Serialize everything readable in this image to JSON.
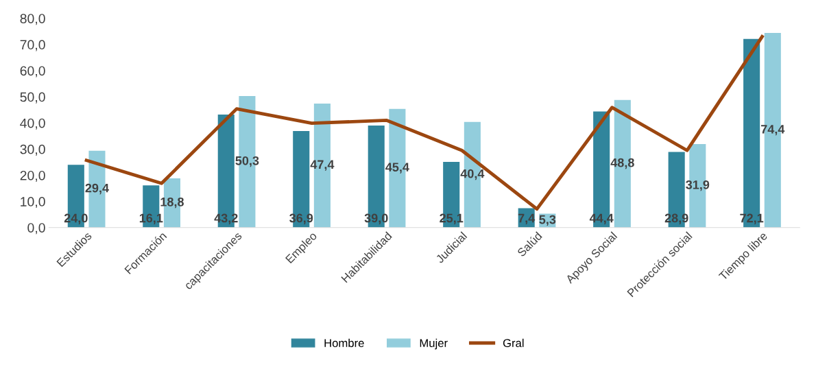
{
  "chart_data": {
    "type": "bar",
    "categories": [
      "Estudios",
      "Formación",
      "capacitaciones",
      "Empleo",
      "Habitabilidad",
      "Judicial",
      "Salúd",
      "Apoyo Social",
      "Protección social",
      "Tiempo libre"
    ],
    "series": [
      {
        "name": "Hombre",
        "color": "#31859c",
        "values": [
          24.0,
          16.1,
          43.2,
          36.9,
          39.0,
          25.1,
          7.4,
          44.4,
          28.9,
          72.1
        ],
        "value_labels": [
          "24,0",
          "16,1",
          "43,2",
          "36,9",
          "39,0",
          "25,1",
          "7,4",
          "44,4",
          "28,9",
          "72,1"
        ]
      },
      {
        "name": "Mujer",
        "color": "#92cddc",
        "values": [
          29.4,
          18.8,
          50.3,
          47.4,
          45.4,
          40.4,
          5.3,
          48.8,
          31.9,
          74.4
        ],
        "value_labels": [
          "29,4",
          "18,8",
          "50,3",
          "47,4",
          "45,4",
          "40,4",
          "5,3",
          "48,8",
          "31,9",
          "74,4"
        ]
      },
      {
        "name": "Gral",
        "type": "line",
        "color": "#9c4710",
        "values": [
          25.7,
          16.9,
          45.4,
          39.9,
          41.0,
          29.5,
          7.1,
          45.9,
          29.5,
          73.0
        ]
      }
    ],
    "ylim": [
      0,
      80
    ],
    "yticks": [
      {
        "value": 0,
        "label": "0,0"
      },
      {
        "value": 10,
        "label": "10,0"
      },
      {
        "value": 20,
        "label": "20,0"
      },
      {
        "value": 30,
        "label": "30,0"
      },
      {
        "value": 40,
        "label": "40,0"
      },
      {
        "value": 50,
        "label": "50,0"
      },
      {
        "value": 60,
        "label": "60,0"
      },
      {
        "value": 70,
        "label": "70,0"
      },
      {
        "value": 80,
        "label": "80,0"
      }
    ],
    "legend": "bottom",
    "marker": "none",
    "line_style": "solid"
  }
}
